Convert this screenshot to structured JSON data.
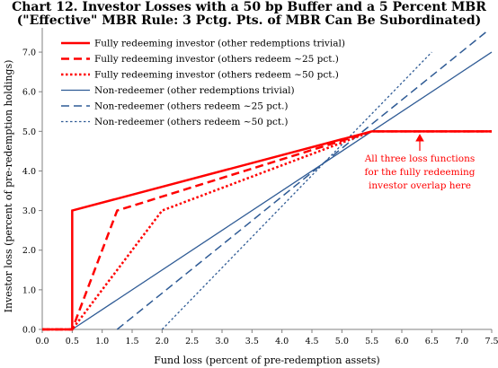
{
  "chart_data": {
    "type": "line",
    "title": "Chart 12. Investor Losses with a 50 bp Buffer and a 5 Percent MBR",
    "subtitle": "(\"Effective\" MBR Rule:  3 Pctg. Pts. of MBR Can Be Subordinated)",
    "xlabel": "Fund loss (percent of pre-redemption assets)",
    "ylabel": "Investor loss (percent of pre-redemption holdings)",
    "xlim": [
      0,
      7.5
    ],
    "ylim": [
      0,
      7.5
    ],
    "x_ticks": [
      "0.0",
      "0.5",
      "1.0",
      "1.5",
      "2.0",
      "2.5",
      "3.0",
      "3.5",
      "4.0",
      "4.5",
      "5.0",
      "5.5",
      "6.0",
      "6.5",
      "7.0",
      "7.5"
    ],
    "y_ticks": [
      "0.0",
      "1.0",
      "2.0",
      "3.0",
      "4.0",
      "5.0",
      "6.0",
      "7.0"
    ],
    "grid": false,
    "legend_position": "top-left",
    "series": [
      {
        "name": "Fully redeeming investor (other redemptions trivial)",
        "color": "#ff0000",
        "dash": "solid",
        "width": 2.5,
        "points": [
          [
            0,
            0
          ],
          [
            0.5,
            0
          ],
          [
            0.5,
            3.0
          ],
          [
            5.5,
            5.0
          ],
          [
            7.5,
            5.0
          ]
        ]
      },
      {
        "name": "Fully redeeming investor (others redeem ~25 pct.)",
        "color": "#ff0000",
        "dash": "dashed",
        "width": 2.5,
        "points": [
          [
            0,
            0
          ],
          [
            0.5,
            0
          ],
          [
            1.25,
            3.0
          ],
          [
            5.5,
            5.0
          ],
          [
            7.5,
            5.0
          ]
        ]
      },
      {
        "name": "Fully redeeming investor (others redeem ~50 pct.)",
        "color": "#ff0000",
        "dash": "dotted",
        "width": 2.5,
        "points": [
          [
            0,
            0
          ],
          [
            0.5,
            0
          ],
          [
            2.0,
            3.0
          ],
          [
            5.5,
            5.0
          ],
          [
            7.5,
            5.0
          ]
        ]
      },
      {
        "name": "Non-redeemer (other redemptions trivial)",
        "color": "#2f5b95",
        "dash": "solid",
        "width": 1.3,
        "points": [
          [
            0.5,
            0
          ],
          [
            7.5,
            7.0
          ]
        ]
      },
      {
        "name": "Non-redeemer (others redeem ~25 pct.)",
        "color": "#2f5b95",
        "dash": "dashed",
        "width": 1.5,
        "points": [
          [
            1.25,
            0
          ],
          [
            7.4,
            7.5
          ]
        ]
      },
      {
        "name": "Non-redeemer (others redeem ~50 pct.)",
        "color": "#2f5b95",
        "dash": "dotted",
        "width": 1.3,
        "points": [
          [
            2.0,
            0
          ],
          [
            6.5,
            7.0
          ]
        ]
      }
    ],
    "annotation": {
      "lines": [
        "All three loss functions",
        "for the fully redeeming",
        "investor overlap here"
      ],
      "color": "#ff0000",
      "arrow_target": [
        6.3,
        5.0
      ]
    }
  }
}
